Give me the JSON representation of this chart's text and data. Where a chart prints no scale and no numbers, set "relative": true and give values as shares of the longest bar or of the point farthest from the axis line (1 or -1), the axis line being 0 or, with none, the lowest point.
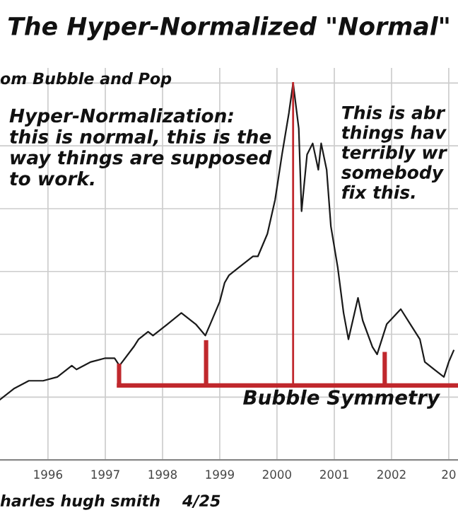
{
  "chart_data": {
    "type": "line",
    "title": "The Hyper-Normalized \"Normal\"",
    "relative": true,
    "color": "#1a1a1a",
    "x": [
      "1995-03",
      "1995-06",
      "1995-09",
      "1995-12",
      "1996-03",
      "1996-06",
      "1996-07",
      "1996-10",
      "1997-01",
      "1997-03",
      "1997-04",
      "1997-07",
      "1997-08",
      "1997-10",
      "1997-11",
      "1998-02",
      "1998-05",
      "1998-08",
      "1998-10",
      "1998-11",
      "1999-01",
      "1999-02",
      "1999-03",
      "1999-05",
      "1999-08",
      "1999-09",
      "1999-11",
      "1999-12-20",
      "2000-02-02",
      "2000-03-17",
      "2000-04-13",
      "2000-05-19",
      "2000-06-06",
      "2000-07-11",
      "2000-08-16",
      "2000-09-21",
      "2000-10-09",
      "2000-11-13",
      "2000-12-10",
      "2001-01-23",
      "2001-03",
      "2001-04",
      "2001-06",
      "2001-07",
      "2001-09",
      "2001-10",
      "2001-12",
      "2002-03",
      "2002-05",
      "2002-07",
      "2002-08",
      "2002-10",
      "2002-12",
      "2003-01",
      "2003-02"
    ],
    "values": [
      0.16,
      0.19,
      0.21,
      0.21,
      0.22,
      0.25,
      0.24,
      0.26,
      0.27,
      0.27,
      0.25,
      0.3,
      0.32,
      0.34,
      0.33,
      0.36,
      0.39,
      0.36,
      0.33,
      0.36,
      0.42,
      0.47,
      0.49,
      0.51,
      0.54,
      0.54,
      0.6,
      0.69,
      0.81,
      0.92,
      1.0,
      0.88,
      0.66,
      0.81,
      0.84,
      0.77,
      0.84,
      0.77,
      0.62,
      0.51,
      0.39,
      0.32,
      0.43,
      0.37,
      0.3,
      0.28,
      0.36,
      0.4,
      0.36,
      0.32,
      0.26,
      0.24,
      0.22,
      0.26,
      0.29
    ],
    "xlim": [
      "1995-03-01",
      "2003-03-01"
    ],
    "ref_lines": [
      {
        "axis": "x",
        "value": "2000-04-13",
        "color": "#c0282d"
      }
    ],
    "xticks": [
      {
        "value": "1996",
        "label": "1996"
      },
      {
        "value": "1997",
        "label": "1997"
      },
      {
        "value": "1998",
        "label": "1998"
      },
      {
        "value": "1999",
        "label": "1999"
      },
      {
        "value": "2000",
        "label": "2000"
      },
      {
        "value": "2001",
        "label": "2001"
      },
      {
        "value": "2002",
        "label": "2002"
      },
      {
        "value": "2003",
        "label": "20"
      }
    ],
    "grid": true,
    "tick_labels": "x",
    "marker": "none",
    "line_style": "solid",
    "annotations": [
      "om Bubble and Pop",
      "Hyper-Normalization:\nthis is normal, this is the\nway things are supposed\nto work.",
      "This is abr\nthings hav\nterribly wr\nsomebody\nfix this.",
      "Bubble Symmetry",
      "harles hugh smith    4/25"
    ]
  }
}
